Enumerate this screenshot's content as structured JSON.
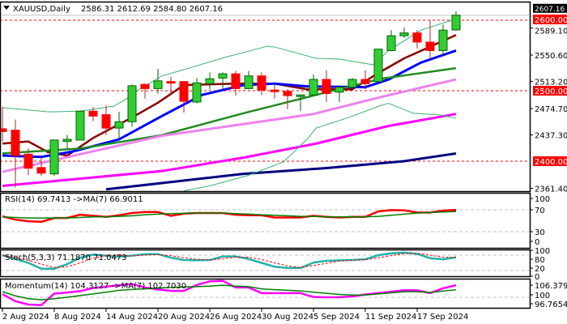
{
  "header": {
    "symbol_timeframe": "XAUUSD,Daily",
    "ohlc": "2586.31 2612.69 2584.80 2607.16"
  },
  "colors": {
    "bull": "#32cd32",
    "bear": "#ff0000",
    "outline": "#006400",
    "level_line": "#ff0000",
    "current_price_line": "#c0c0c0"
  },
  "chart_data": [
    {
      "type": "candlestick",
      "title": "XAUUSD,Daily",
      "ylim": [
        2361.4,
        2616
      ],
      "price_axis_labels": [
        "2589.10",
        "2550.60",
        "2513.20",
        "2474.70",
        "2437.30",
        "2361.40"
      ],
      "price_axis_values": [
        2589.1,
        2550.6,
        2513.2,
        2474.7,
        2437.3,
        2361.4
      ],
      "current_price": {
        "value": 2607.16,
        "label": "2607.16"
      },
      "levels": [
        {
          "value": 2600,
          "label": "2600.00"
        },
        {
          "value": 2500,
          "label": "2500.00"
        },
        {
          "value": 2400,
          "label": "2400.00"
        }
      ],
      "x_labels": [
        {
          "index": 0,
          "label": "2 Aug 2024"
        },
        {
          "index": 4,
          "label": "8 Aug 2024"
        },
        {
          "index": 8,
          "label": "14 Aug 2024"
        },
        {
          "index": 12,
          "label": "20 Aug 2024"
        },
        {
          "index": 16,
          "label": "26 Aug 2024"
        },
        {
          "index": 20,
          "label": "30 Aug 2024"
        },
        {
          "index": 24,
          "label": "5 Sep 2024"
        },
        {
          "index": 28,
          "label": "11 Sep 2024"
        },
        {
          "index": 32,
          "label": "17 Sep 2024"
        }
      ],
      "ohlc": [
        [
          2446,
          2477,
          2428,
          2442
        ],
        [
          2444,
          2459,
          2363,
          2408
        ],
        [
          2410,
          2418,
          2380,
          2390
        ],
        [
          2391,
          2406,
          2379,
          2383
        ],
        [
          2382,
          2430,
          2379,
          2430
        ],
        [
          2428,
          2437,
          2418,
          2431
        ],
        [
          2430,
          2472,
          2430,
          2471
        ],
        [
          2471,
          2477,
          2457,
          2464
        ],
        [
          2466,
          2479,
          2437,
          2447
        ],
        [
          2447,
          2470,
          2432,
          2456
        ],
        [
          2456,
          2509,
          2449,
          2507
        ],
        [
          2509,
          2510,
          2489,
          2503
        ],
        [
          2503,
          2531,
          2496,
          2514
        ],
        [
          2513,
          2520,
          2494,
          2512
        ],
        [
          2513,
          2514,
          2469,
          2485
        ],
        [
          2484,
          2518,
          2482,
          2511
        ],
        [
          2510,
          2526,
          2502,
          2517
        ],
        [
          2518,
          2526,
          2502,
          2524
        ],
        [
          2524,
          2528,
          2493,
          2503
        ],
        [
          2503,
          2528,
          2502,
          2521
        ],
        [
          2521,
          2526,
          2494,
          2501
        ],
        [
          2501,
          2510,
          2489,
          2499
        ],
        [
          2499,
          2502,
          2474,
          2493
        ],
        [
          2493,
          2494,
          2471,
          2494
        ],
        [
          2494,
          2523,
          2494,
          2516
        ],
        [
          2516,
          2529,
          2484,
          2496
        ],
        [
          2498,
          2505,
          2484,
          2505
        ],
        [
          2505,
          2518,
          2505,
          2516
        ],
        [
          2516,
          2529,
          2502,
          2510
        ],
        [
          2513,
          2559,
          2513,
          2559
        ],
        [
          2557,
          2586,
          2556,
          2578
        ],
        [
          2578,
          2590,
          2575,
          2582
        ],
        [
          2582,
          2586,
          2560,
          2569
        ],
        [
          2569,
          2600,
          2545,
          2557
        ],
        [
          2557,
          2594,
          2549,
          2586
        ],
        [
          2586.31,
          2612.69,
          2584.8,
          2607.16
        ]
      ],
      "overlays": [
        {
          "color": "#8b0000",
          "width": 2.5,
          "points": [
            [
              0,
              2425
            ],
            [
              2,
              2428
            ],
            [
              3.5,
              2413
            ],
            [
              5,
              2408
            ],
            [
              7,
              2433
            ],
            [
              10,
              2462
            ],
            [
              12,
              2483
            ],
            [
              14,
              2508
            ],
            [
              18,
              2510
            ],
            [
              21,
              2510
            ],
            [
              23.5,
              2502
            ],
            [
              27,
              2502
            ],
            [
              29,
              2525
            ],
            [
              31,
              2546
            ],
            [
              35,
              2579
            ]
          ]
        },
        {
          "color": "#0000ff",
          "width": 3,
          "points": [
            [
              0,
              2408
            ],
            [
              3,
              2406
            ],
            [
              5.5,
              2414
            ],
            [
              9,
              2431
            ],
            [
              12.3,
              2464
            ],
            [
              15.4,
              2494
            ],
            [
              18.6,
              2508
            ],
            [
              21,
              2510
            ],
            [
              23.6,
              2506
            ],
            [
              28,
              2505
            ],
            [
              29.8,
              2516
            ],
            [
              32.3,
              2540
            ],
            [
              35,
              2557
            ]
          ]
        },
        {
          "color": "#228b22",
          "width": 2.5,
          "points": [
            [
              0,
              2411
            ],
            [
              6,
              2418
            ],
            [
              12.3,
              2437
            ],
            [
              18.6,
              2468
            ],
            [
              24.2,
              2494
            ],
            [
              29.2,
              2517
            ],
            [
              35,
              2532
            ]
          ]
        },
        {
          "color": "#ee82ee",
          "width": 3,
          "points": [
            [
              0,
              2385
            ],
            [
              12.3,
              2436
            ],
            [
              24,
              2467
            ],
            [
              29.2,
              2491
            ],
            [
              35,
              2516
            ]
          ]
        },
        {
          "color": "#ff00ff",
          "width": 3,
          "points": [
            [
              0,
              2365
            ],
            [
              12.3,
              2386
            ],
            [
              18.6,
              2405
            ],
            [
              24.2,
              2425
            ],
            [
              29.8,
              2450
            ],
            [
              35,
              2467
            ]
          ]
        },
        {
          "color": "#000080",
          "width": 3,
          "points": [
            [
              8,
              2360
            ],
            [
              12.3,
              2369
            ],
            [
              18.6,
              2382
            ],
            [
              24.8,
              2390
            ],
            [
              31,
              2400
            ],
            [
              35,
              2411
            ]
          ]
        },
        {
          "color": "#3cb371",
          "width": 1,
          "points": [
            [
              0,
              2476
            ],
            [
              3.6,
              2470
            ],
            [
              6,
              2471
            ],
            [
              8.6,
              2478
            ],
            [
              9.8,
              2491
            ],
            [
              10.4,
              2500
            ],
            [
              12.3,
              2521
            ],
            [
              14.2,
              2531
            ],
            [
              17.3,
              2548
            ],
            [
              19.8,
              2560
            ],
            [
              20.4,
              2563
            ],
            [
              21,
              2562
            ],
            [
              24.2,
              2546
            ],
            [
              26,
              2545
            ],
            [
              27.9,
              2539
            ],
            [
              28.6,
              2537
            ],
            [
              29.8,
              2557
            ],
            [
              32.3,
              2586
            ],
            [
              35,
              2602
            ]
          ]
        },
        {
          "color": "#3cb371",
          "width": 1,
          "points": [
            [
              14,
              2358
            ],
            [
              16,
              2365
            ],
            [
              19,
              2380
            ],
            [
              21.7,
              2399
            ],
            [
              23.6,
              2433
            ],
            [
              24.2,
              2447
            ],
            [
              26.7,
              2462
            ],
            [
              29.2,
              2479
            ],
            [
              29.8,
              2482
            ],
            [
              31.7,
              2468
            ],
            [
              33.6,
              2466
            ],
            [
              35,
              2461
            ]
          ]
        }
      ]
    },
    {
      "type": "line",
      "title": "RSI(14) 69.7413 ->MA(7) 66.9011",
      "ylim": [
        0,
        100
      ],
      "axis_labels": [
        "100",
        "70",
        "30",
        "0"
      ],
      "levels": [
        70,
        30
      ],
      "series": [
        {
          "color": "#ff0000",
          "values": [
            58,
            52,
            49,
            48,
            55,
            55,
            61,
            59,
            57,
            60,
            64,
            66,
            66,
            59,
            63,
            64,
            64,
            64,
            61,
            60,
            60,
            56,
            56,
            56,
            59,
            57,
            56,
            57,
            57,
            67,
            69.5,
            69,
            65,
            65,
            68.5,
            69.74
          ]
        },
        {
          "color": "#008000",
          "values": [
            57,
            56,
            55,
            55,
            55,
            55,
            56,
            57,
            57,
            58,
            59,
            61,
            62,
            63,
            63.5,
            64,
            64,
            64,
            63,
            62,
            61,
            60,
            59,
            58,
            58,
            57,
            57,
            57,
            57,
            58,
            60,
            62,
            64,
            65,
            66,
            66.9
          ]
        }
      ]
    },
    {
      "type": "line",
      "title": "Stoch(5,3,3) 71.1870 71.0473",
      "ylim": [
        0,
        100
      ],
      "axis_labels": [
        "100",
        "80",
        "20",
        "0"
      ],
      "levels": [
        80,
        20
      ],
      "series": [
        {
          "color": "#20b2aa",
          "dashed": false,
          "values": [
            80,
            65,
            50,
            27,
            27,
            45,
            70,
            82,
            78,
            74,
            78,
            84,
            84,
            70,
            61,
            60,
            61,
            75,
            75,
            65,
            50,
            35,
            30,
            30,
            51,
            58,
            60,
            61,
            64,
            80,
            87,
            90,
            85,
            68,
            64,
            71.19
          ]
        },
        {
          "color": "#ff0000",
          "dashed": true,
          "values": [
            78,
            72,
            60,
            45,
            32,
            35,
            50,
            68,
            78,
            78,
            77,
            80,
            82,
            78,
            70,
            64,
            61,
            66,
            72,
            72,
            63,
            50,
            38,
            32,
            40,
            48,
            57,
            60,
            62,
            70,
            78,
            86,
            87,
            80,
            72,
            71.05
          ]
        }
      ]
    },
    {
      "type": "line",
      "title": "Momentum(14) 104.3127 ->MA(7) 102.7030",
      "ylim": [
        96.7654,
        106.3799
      ],
      "axis_labels": [
        "106.3799",
        "100",
        "96.7654"
      ],
      "levels": [
        100
      ],
      "series": [
        {
          "color": "#ff00ff",
          "values": [
            101.1,
            98.6,
            97.4,
            97.2,
            101.3,
            101.7,
            102.2,
            103.3,
            103.8,
            104.3,
            104.7,
            103.5,
            102.8,
            102.3,
            102.3,
            104.4,
            105.7,
            105.9,
            103.5,
            103.5,
            101.5,
            101.5,
            101.5,
            101.5,
            100.1,
            100,
            100,
            100.3,
            101,
            101.5,
            102,
            102.5,
            102.5,
            101.5,
            103.2,
            104.31
          ]
        },
        {
          "color": "#008000",
          "values": [
            102,
            100.5,
            99.5,
            99.1,
            99.5,
            100,
            100.6,
            101.2,
            101.8,
            102.5,
            102.8,
            103,
            103.3,
            103.5,
            103.7,
            103.8,
            104,
            104.3,
            104,
            103.8,
            103,
            102.7,
            102.5,
            102.3,
            101.8,
            101.4,
            101,
            100.8,
            100.8,
            101.2,
            101.6,
            102,
            102,
            101.7,
            102.2,
            102.7
          ]
        }
      ]
    }
  ]
}
